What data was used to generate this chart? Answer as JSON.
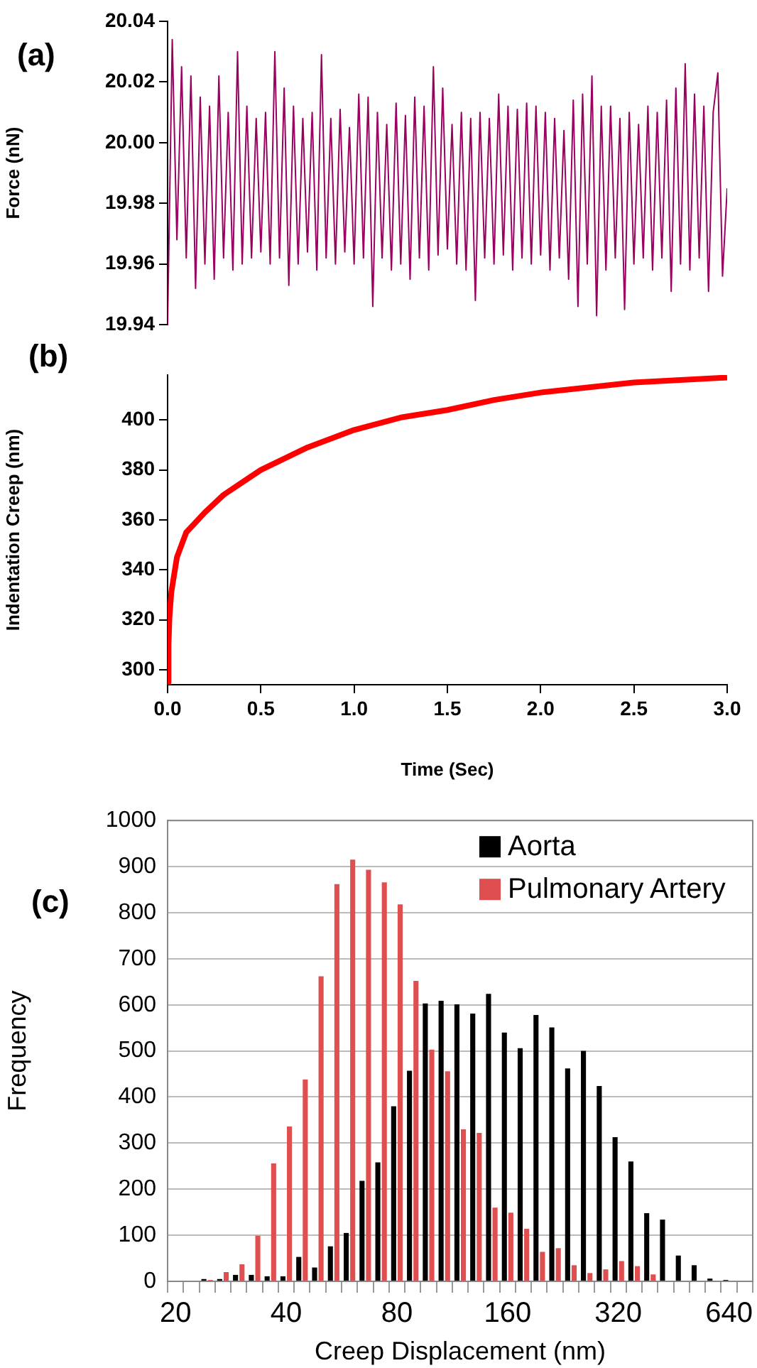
{
  "chart_data": [
    {
      "type": "line",
      "title": "(a)",
      "ylabel": "Force (nN)",
      "color": "#9a0060",
      "xlim": [
        0,
        3
      ],
      "ylim": [
        19.94,
        20.04
      ],
      "yticks": [
        {
          "value": 19.94,
          "label": "19.94"
        },
        {
          "value": 19.96,
          "label": "19.96"
        },
        {
          "value": 19.98,
          "label": "19.98"
        },
        {
          "value": 20,
          "label": "20.00"
        },
        {
          "value": 20.02,
          "label": "20.02"
        },
        {
          "value": 20.04,
          "label": "20.04"
        }
      ],
      "tick_labels": "y",
      "x": [
        0,
        0.025,
        0.05,
        0.075,
        0.1,
        0.125,
        0.15,
        0.175,
        0.2,
        0.225,
        0.25,
        0.275,
        0.3,
        0.325,
        0.35,
        0.375,
        0.4,
        0.425,
        0.45,
        0.475,
        0.5,
        0.525,
        0.55,
        0.575,
        0.6,
        0.625,
        0.65,
        0.675,
        0.7,
        0.725,
        0.75,
        0.775,
        0.8,
        0.825,
        0.85,
        0.875,
        0.9,
        0.925,
        0.95,
        0.975,
        1,
        1.025,
        1.05,
        1.075,
        1.1,
        1.125,
        1.15,
        1.175,
        1.2,
        1.225,
        1.25,
        1.275,
        1.3,
        1.325,
        1.35,
        1.375,
        1.4,
        1.425,
        1.45,
        1.475,
        1.5,
        1.525,
        1.55,
        1.575,
        1.6,
        1.625,
        1.65,
        1.675,
        1.7,
        1.725,
        1.75,
        1.775,
        1.8,
        1.825,
        1.85,
        1.875,
        1.9,
        1.925,
        1.95,
        1.975,
        2,
        2.025,
        2.05,
        2.075,
        2.1,
        2.125,
        2.15,
        2.175,
        2.2,
        2.225,
        2.25,
        2.275,
        2.3,
        2.325,
        2.35,
        2.375,
        2.4,
        2.425,
        2.45,
        2.475,
        2.5,
        2.525,
        2.55,
        2.575,
        2.6,
        2.625,
        2.65,
        2.675,
        2.7,
        2.725,
        2.75,
        2.775,
        2.8,
        2.825,
        2.85,
        2.875,
        2.9,
        2.925,
        2.95,
        2.975,
        3
      ],
      "values": [
        19.94,
        20.034,
        19.968,
        20.025,
        19.962,
        20.022,
        19.952,
        20.015,
        19.96,
        20.012,
        19.955,
        20.022,
        19.962,
        20.01,
        19.958,
        20.03,
        19.96,
        20.012,
        19.962,
        20.008,
        19.964,
        20.01,
        19.96,
        20.03,
        19.962,
        20.018,
        19.953,
        20.012,
        19.96,
        20.008,
        19.964,
        20.01,
        19.958,
        20.029,
        19.962,
        20.008,
        19.96,
        20.011,
        19.964,
        20.005,
        19.96,
        20.016,
        19.962,
        20.015,
        19.946,
        20.01,
        19.962,
        20.006,
        19.958,
        20.013,
        19.96,
        20.009,
        19.955,
        20.015,
        19.962,
        20.012,
        19.958,
        20.025,
        19.963,
        20.018,
        19.965,
        20.006,
        19.96,
        20.01,
        19.958,
        20.008,
        19.948,
        20.01,
        19.962,
        20.008,
        19.96,
        20.016,
        19.963,
        20.012,
        19.958,
        20.011,
        19.962,
        20.013,
        19.96,
        20.012,
        19.963,
        20.01,
        19.958,
        20.008,
        19.962,
        20.004,
        19.955,
        20.014,
        19.946,
        20.016,
        19.96,
        20.022,
        19.943,
        20.012,
        19.958,
        20.012,
        19.962,
        20.008,
        19.945,
        20.01,
        19.96,
        20.006,
        19.962,
        20.012,
        19.958,
        20.01,
        19.962,
        20.014,
        19.951,
        20.018,
        19.96,
        20.026,
        19.958,
        20.016,
        19.962,
        20.012,
        19.951,
        20.01,
        20.023,
        19.956,
        19.985
      ]
    },
    {
      "type": "line",
      "title": "(b)",
      "xlabel": "Time (Sec)",
      "ylabel": "Indentation Creep (nm)",
      "color": "#ff0000",
      "xlim": [
        0,
        3
      ],
      "xticks": [
        {
          "value": 0,
          "label": "0.0"
        },
        0.5,
        {
          "value": 1,
          "label": "1.0"
        },
        1.5,
        {
          "value": 2,
          "label": "2.0"
        },
        2.5,
        {
          "value": 3,
          "label": "3.0"
        }
      ],
      "ylim": [
        294,
        418
      ],
      "yticks": [
        300,
        320,
        340,
        360,
        380,
        400
      ],
      "x": [
        0,
        0.005,
        0.01,
        0.02,
        0.05,
        0.1,
        0.15,
        0.2,
        0.3,
        0.4,
        0.5,
        0.75,
        1,
        1.25,
        1.5,
        1.75,
        2,
        2.5,
        3
      ],
      "values": [
        295,
        310,
        321,
        331,
        345,
        355,
        359,
        363,
        370,
        375,
        380,
        389,
        396,
        401,
        404,
        408,
        411,
        415,
        417
      ]
    },
    {
      "type": "bar",
      "title": "(c)",
      "xlabel": "Creep Displacement (nm)",
      "ylabel": "Frequency",
      "ylim": [
        0,
        1000
      ],
      "yticks": [
        0,
        100,
        200,
        300,
        400,
        500,
        600,
        700,
        800,
        900,
        1000
      ],
      "grid": "y",
      "legend": "top right",
      "categories": [
        "20",
        null,
        null,
        null,
        null,
        null,
        null,
        "40",
        null,
        null,
        null,
        null,
        null,
        null,
        "80",
        null,
        null,
        null,
        null,
        null,
        null,
        "160",
        null,
        null,
        null,
        null,
        null,
        null,
        "320",
        null,
        null,
        null,
        null,
        null,
        null,
        "640",
        null
      ],
      "series": [
        {
          "name": "Aorta",
          "color": "#000000",
          "values": [
            0,
            null,
            5,
            5,
            14,
            14,
            11,
            11,
            53,
            30,
            76,
            105,
            218,
            258,
            380,
            457,
            603,
            609,
            601,
            581,
            624,
            540,
            506,
            578,
            551,
            462,
            500,
            424,
            313,
            260,
            148,
            134,
            56,
            35,
            6,
            3,
            0
          ]
        },
        {
          "name": "Pulmonary Artery",
          "color": "#e04f4f",
          "values": [
            0,
            null,
            3,
            20,
            37,
            99,
            256,
            336,
            438,
            662,
            862,
            915,
            893,
            866,
            818,
            652,
            503,
            456,
            330,
            322,
            160,
            149,
            114,
            64,
            72,
            35,
            18,
            26,
            44,
            33,
            15,
            0,
            0,
            0,
            0,
            0,
            0
          ]
        }
      ]
    }
  ]
}
